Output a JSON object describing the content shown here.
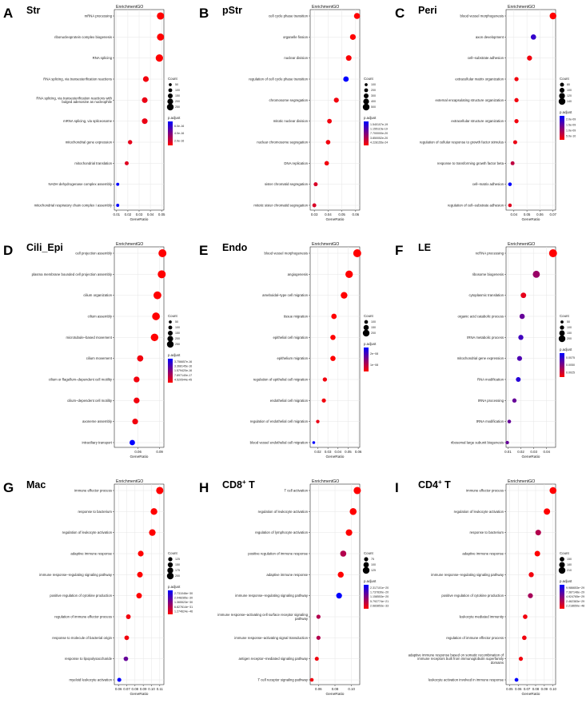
{
  "figure_label": "EnrichmentGO",
  "xlabel": "GeneRatio",
  "legend": {
    "count_title": "Count",
    "padj_title": "p.adjust"
  },
  "colors": {
    "high": "#0000ff",
    "low": "#ff0000",
    "grid": "#e6e6e6"
  },
  "chart_data": [
    {
      "type": "scatter",
      "panel": "A",
      "title": "Str",
      "title_sup": "",
      "xticks": [
        "0.01",
        "0.02",
        "0.03",
        "0.04",
        "0.05"
      ],
      "xlim": [
        0.008,
        0.052
      ],
      "terms": [
        "mRNA processing",
        "ribonucleoprotein complex biogenesis",
        "RNA splicing",
        "RNA splicing, via transesterification reactions",
        "RNA splicing, via transesterification reactions with bulged adenosine as nucleophile",
        "mRNA splicing, via spliceosome",
        "mitochondrial gene expression",
        "mitochondrial translation",
        "NADH dehydrogenase complex assembly",
        "mitochondrial respiratory chain complex I assembly"
      ],
      "gene_ratio": [
        0.049,
        0.049,
        0.048,
        0.036,
        0.035,
        0.035,
        0.022,
        0.019,
        0.011,
        0.011
      ],
      "count": [
        280,
        270,
        285,
        200,
        195,
        195,
        125,
        105,
        60,
        60
      ],
      "padj_level": [
        0.0,
        0.0,
        0.0,
        0.05,
        0.08,
        0.08,
        0.1,
        0.12,
        1.0,
        1.0
      ],
      "count_legend": [
        "50",
        "100",
        "150",
        "200",
        "250"
      ],
      "count_legend_values": [
        50,
        100,
        150,
        200,
        250
      ],
      "padj_legend": [
        "6.0e-16",
        "4.0e-16",
        "2.0e-16"
      ]
    },
    {
      "type": "scatter",
      "panel": "B",
      "title": "pStr",
      "title_sup": "",
      "xticks": [
        "0.03",
        "0.04",
        "0.05",
        "0.06"
      ],
      "xlim": [
        0.027,
        0.063
      ],
      "terms": [
        "cell cycle phase transition",
        "organelle fission",
        "nuclear division",
        "regulation of cell cycle phase transition",
        "chromosome segregation",
        "mitotic nuclear division",
        "nuclear chromosome segregation",
        "DNA replication",
        "sister chromatid segregation",
        "mitotic sister chromatid segregation"
      ],
      "gene_ratio": [
        0.061,
        0.058,
        0.055,
        0.053,
        0.046,
        0.041,
        0.04,
        0.039,
        0.031,
        0.03
      ],
      "count": [
        430,
        400,
        385,
        370,
        320,
        285,
        275,
        270,
        215,
        205
      ],
      "padj_level": [
        0.0,
        0.0,
        0.02,
        1.0,
        0.05,
        0.05,
        0.05,
        0.05,
        0.15,
        0.15
      ],
      "count_legend": [
        "100",
        "200",
        "300",
        "400",
        "500"
      ],
      "count_legend_values": [
        100,
        200,
        300,
        400,
        500
      ],
      "padj_legend": [
        "1.540107e-19",
        "1.155115e-19",
        "7.700000e-20",
        "3.850052e-20",
        "4.228155e-24"
      ]
    },
    {
      "type": "scatter",
      "panel": "C",
      "title": "Peri",
      "title_sup": "",
      "xticks": [
        "0.04",
        "0.05",
        "0.06",
        "0.07"
      ],
      "xlim": [
        0.034,
        0.072
      ],
      "terms": [
        "blood vessel morphogenesis",
        "axon development",
        "cell–substrate adhesion",
        "extracellular matrix organization",
        "external encapsulating structure organization",
        "extracellular structure organization",
        "regulation of cellular response to growth factor stimulus",
        "response to transforming growth factor beta",
        "cell–matrix adhesion",
        "regulation of cell–substrate adhesion"
      ],
      "gene_ratio": [
        0.07,
        0.055,
        0.052,
        0.042,
        0.042,
        0.042,
        0.041,
        0.039,
        0.037,
        0.037
      ],
      "count": [
        140,
        110,
        103,
        85,
        85,
        85,
        82,
        78,
        72,
        72
      ],
      "padj_level": [
        0.0,
        0.8,
        0.05,
        0.05,
        0.05,
        0.05,
        0.08,
        0.25,
        1.0,
        0.12
      ],
      "count_legend": [
        "80",
        "100",
        "120",
        "140"
      ],
      "count_legend_values": [
        80,
        100,
        120,
        140
      ],
      "padj_legend": [
        "2.0e-09",
        "1.5e-09",
        "1.0e-09",
        "5.0e-10"
      ]
    },
    {
      "type": "scatter",
      "panel": "D",
      "title": "Cili_Epi",
      "title_sup": "",
      "xticks": [
        "0.06",
        "0.09"
      ],
      "xlim": [
        0.027,
        0.096
      ],
      "terms": [
        "cell projection assembly",
        "plasma membrane bounded cell projection assembly",
        "cilium organization",
        "cilium assembly",
        "microtubule–based movement",
        "cilium movement",
        "cilium or flagellum–dependent cell motility",
        "cilium–dependent cell motility",
        "axoneme assembly",
        "intraciliary transport"
      ],
      "gene_ratio": [
        0.094,
        0.093,
        0.087,
        0.085,
        0.083,
        0.063,
        0.058,
        0.058,
        0.056,
        0.052
      ],
      "count": [
        345,
        340,
        310,
        305,
        295,
        225,
        205,
        205,
        200,
        185
      ],
      "padj_level": [
        0.0,
        0.0,
        0.0,
        0.0,
        0.0,
        0.05,
        0.05,
        0.05,
        0.05,
        1.0
      ],
      "count_legend": [
        "50",
        "100",
        "150",
        "200",
        "250"
      ],
      "count_legend_values": [
        50,
        100,
        150,
        200,
        250
      ],
      "padj_legend": [
        "3.756657e-16",
        "3.368145e-16",
        "1.579420e-16",
        "7.897140e-17",
        "4.520544e-45"
      ]
    },
    {
      "type": "scatter",
      "panel": "E",
      "title": "Endo",
      "title_sup": "",
      "xticks": [
        "0.02",
        "0.03",
        "0.04",
        "0.05",
        "0.06"
      ],
      "xlim": [
        0.0125,
        0.0615
      ],
      "terms": [
        "blood vessel morphogenesis",
        "angiogenesis",
        "ameboidal–type cell migration",
        "tissue migration",
        "epithelial cell migration",
        "epithelium migration",
        "regulation of epithelial cell migration",
        "endothelial cell migration",
        "regulation of endothelial cell migration",
        "blood vessel endothelial cell migration"
      ],
      "gene_ratio": [
        0.059,
        0.051,
        0.046,
        0.036,
        0.035,
        0.035,
        0.027,
        0.026,
        0.02,
        0.016
      ],
      "count": [
        260,
        225,
        200,
        155,
        150,
        150,
        118,
        115,
        90,
        70
      ],
      "padj_level": [
        0.0,
        0.0,
        0.0,
        0.0,
        0.0,
        0.0,
        0.05,
        0.05,
        0.08,
        1.0
      ],
      "count_legend": [
        "100",
        "150",
        "200"
      ],
      "count_legend_values": [
        100,
        150,
        200
      ],
      "padj_legend": [
        "2e−08",
        "1e−08"
      ]
    },
    {
      "type": "scatter",
      "panel": "F",
      "title": "LE",
      "title_sup": "",
      "xticks": [
        "0.01",
        "0.02",
        "0.03",
        "0.04"
      ],
      "xlim": [
        0.0085,
        0.047
      ],
      "terms": [
        "ncRNA processing",
        "ribosome biogenesis",
        "cytoplasmic translation",
        "organic acid catabolic process",
        "tRNA metabolic process",
        "mitochondrial gene expression",
        "RNA modification",
        "tRNA processing",
        "tRNA modification",
        "ribosomal large subunit biogenesis"
      ],
      "gene_ratio": [
        0.045,
        0.032,
        0.022,
        0.021,
        0.02,
        0.019,
        0.018,
        0.015,
        0.011,
        0.0095
      ],
      "count": [
        300,
        215,
        150,
        140,
        135,
        128,
        120,
        100,
        75,
        65
      ],
      "padj_level": [
        0.0,
        0.4,
        0.1,
        0.6,
        0.75,
        0.7,
        0.85,
        0.6,
        0.6,
        0.6
      ],
      "count_legend": [
        "50",
        "100",
        "150",
        "200"
      ],
      "count_legend_values": [
        50,
        100,
        150,
        200
      ],
      "padj_legend": [
        "0.0075",
        "0.0050",
        "0.0025"
      ]
    },
    {
      "type": "scatter",
      "panel": "G",
      "title": "Mac",
      "title_sup": "",
      "xticks": [
        "0.06",
        "0.07",
        "0.08",
        "0.09",
        "0.10",
        "0.11"
      ],
      "xlim": [
        0.055,
        0.115
      ],
      "terms": [
        "immune effector process",
        "response to bacterium",
        "regulation of leukocyte activation",
        "adaptive immune response",
        "immune response–regulating signaling pathway",
        "positive regulation of cytokine production",
        "regulation of immune effector process",
        "response to molecule of bacterial origin",
        "response to lipopolysaccharide",
        "myeloid leukocyte activation"
      ],
      "gene_ratio": [
        0.11,
        0.103,
        0.101,
        0.087,
        0.086,
        0.085,
        0.072,
        0.07,
        0.069,
        0.061
      ],
      "count": [
        215,
        200,
        196,
        170,
        168,
        166,
        140,
        137,
        135,
        120
      ],
      "padj_level": [
        0.0,
        0.0,
        0.0,
        0.0,
        0.0,
        0.0,
        0.05,
        0.05,
        0.6,
        1.0
      ],
      "count_legend": [
        "125",
        "150",
        "175",
        "200"
      ],
      "count_legend_values": [
        125,
        150,
        175,
        200
      ],
      "padj_legend": [
        "2.731046e−30",
        "2.048285e−30",
        "1.365523e−30",
        "6.827614e−31",
        "1.274624e−46"
      ]
    },
    {
      "type": "scatter",
      "panel": "H",
      "title": "CD8",
      "title_sup": "+",
      "xticks": [
        "0.06",
        "0.08",
        "0.10"
      ],
      "xlim": [
        0.05,
        0.11
      ],
      "terms": [
        "T cell activation",
        "regulation of leukocyte activation",
        "regulation of lymphocyte activation",
        "positive regulation of immune response",
        "adaptive immune response",
        "immune response–regulating signaling pathway",
        "immune response–activating cell surface receptor signaling pathway",
        "immune response–activating signal transduction",
        "antigen receptor–mediated signaling pathway",
        "T cell receptor signaling pathway"
      ],
      "gene_ratio": [
        0.107,
        0.102,
        0.097,
        0.09,
        0.087,
        0.085,
        0.06,
        0.06,
        0.058,
        0.052
      ],
      "count": [
        135,
        128,
        122,
        113,
        110,
        107,
        76,
        76,
        73,
        66
      ],
      "padj_level": [
        0.0,
        0.0,
        0.0,
        0.3,
        0.0,
        1.0,
        0.3,
        0.3,
        0.05,
        0.05
      ],
      "count_legend": [
        "75",
        "100",
        "125"
      ],
      "count_legend_values": [
        75,
        100,
        125
      ],
      "padj_legend": [
        "2.317101e−20",
        "1.737830e−20",
        "1.158553e−20",
        "5.792774e−21",
        "2.683853e−33"
      ]
    },
    {
      "type": "scatter",
      "panel": "I",
      "title": "CD4",
      "title_sup": "+",
      "xticks": [
        "0.05",
        "0.06",
        "0.07",
        "0.08",
        "0.09",
        "0.10"
      ],
      "xlim": [
        0.046,
        0.103
      ],
      "terms": [
        "immune effector process",
        "regulation of leukocyte activation",
        "response to bacterium",
        "adaptive immune response",
        "immune response–regulating signaling pathway",
        "positive regulation of cytokine production",
        "leukocyte mediated immunity",
        "regulation of immune effector process",
        "adaptive immune response based on somatic recombination of immune receptors built from immunoglobulin superfamily domains",
        "leukocyte activation involved in immune response"
      ],
      "gene_ratio": [
        0.1,
        0.093,
        0.083,
        0.082,
        0.075,
        0.074,
        0.068,
        0.067,
        0.063,
        0.058
      ],
      "count": [
        215,
        200,
        180,
        178,
        163,
        161,
        148,
        146,
        137,
        126
      ],
      "padj_level": [
        0.0,
        0.0,
        0.3,
        0.0,
        0.05,
        0.35,
        0.05,
        0.05,
        0.05,
        1.0
      ],
      "count_legend": [
        "150",
        "180",
        "210"
      ],
      "count_legend_values": [
        150,
        180,
        210
      ],
      "padj_legend": [
        "9.986653e−29",
        "7.387148e−29",
        "4.924765e−29",
        "2.462383e−29",
        "2.218650e−48"
      ]
    }
  ]
}
